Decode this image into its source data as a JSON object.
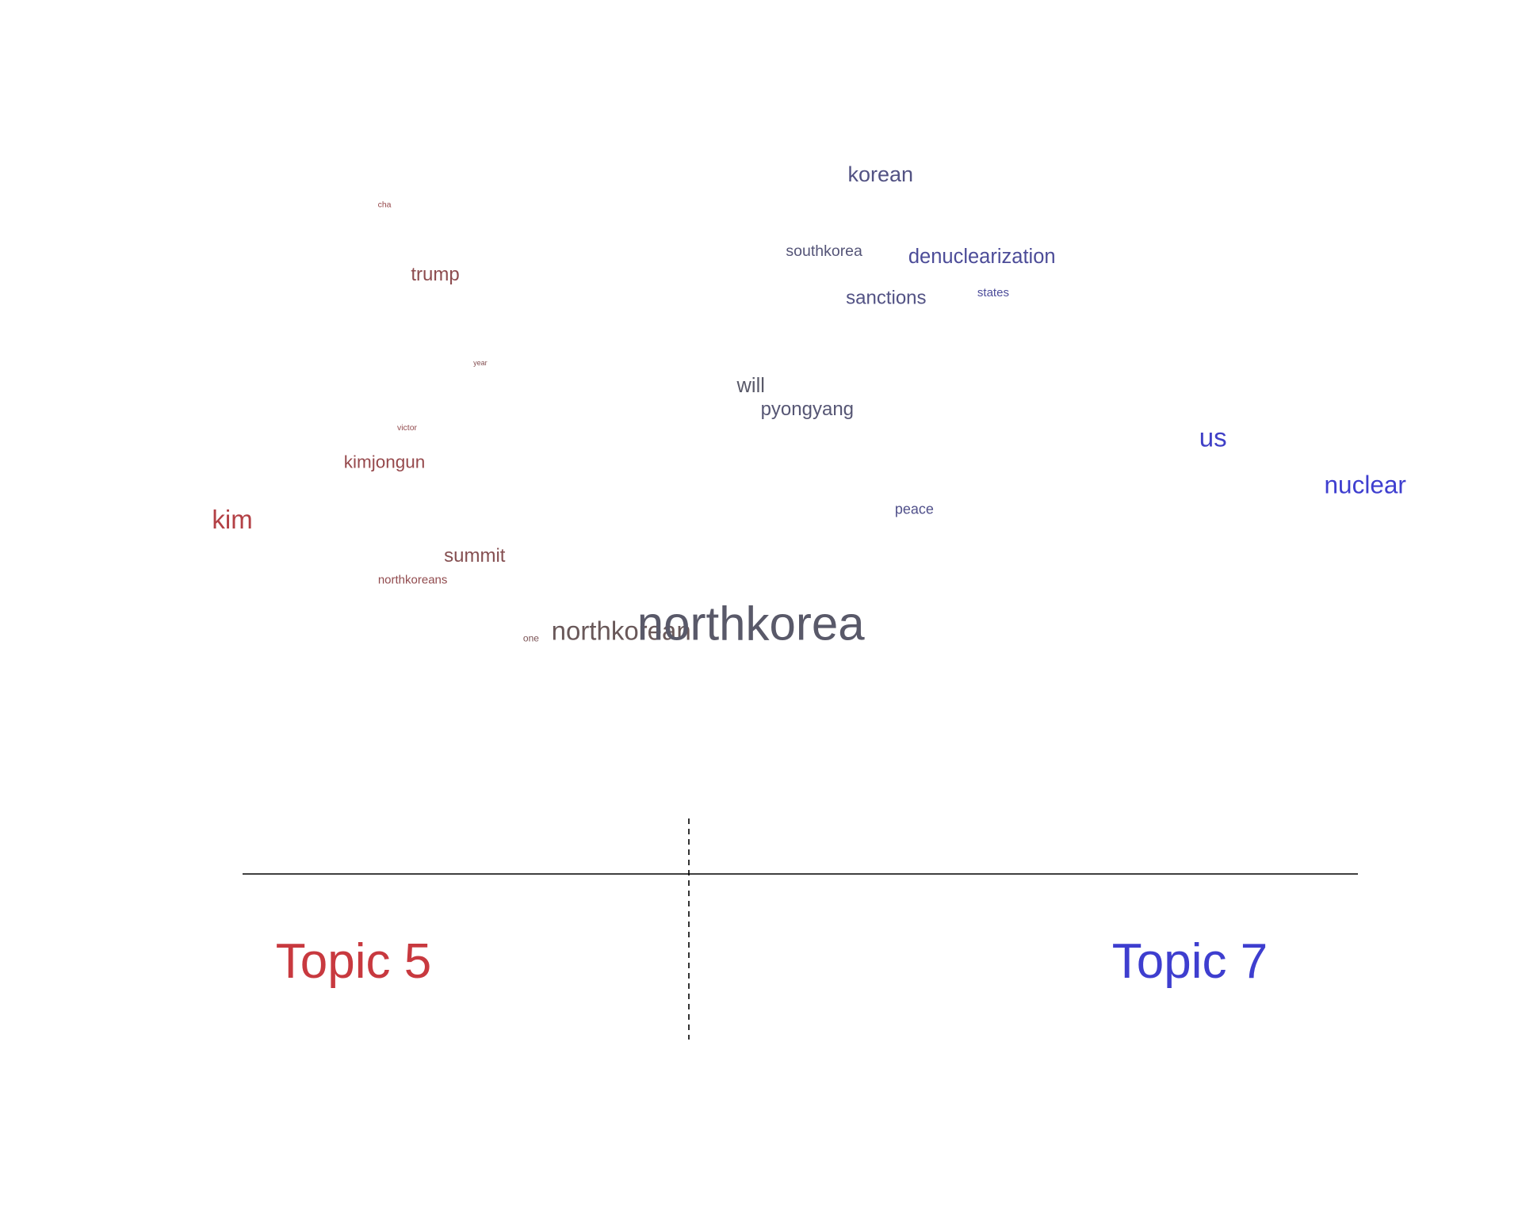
{
  "chart_data": {
    "type": "scatter",
    "description_free": true,
    "xlim": [
      -1,
      1
    ],
    "ylim": [
      0,
      1
    ],
    "left_label": "Topic 5",
    "right_label": "Topic 7",
    "left_color": "#c8393f",
    "right_color": "#3e3ecf",
    "neutral_color": "#5c5c5c",
    "words": [
      {
        "text": "korean",
        "x": 0.34,
        "y": 0.93,
        "freq": 18
      },
      {
        "text": "cha",
        "x": -0.54,
        "y": 0.88,
        "freq": 7
      },
      {
        "text": "southkorea",
        "x": 0.24,
        "y": 0.8,
        "freq": 13
      },
      {
        "text": "denuclearization",
        "x": 0.52,
        "y": 0.79,
        "freq": 17
      },
      {
        "text": "trump",
        "x": -0.45,
        "y": 0.76,
        "freq": 16
      },
      {
        "text": "sanctions",
        "x": 0.35,
        "y": 0.72,
        "freq": 16
      },
      {
        "text": "states",
        "x": 0.54,
        "y": 0.73,
        "freq": 10
      },
      {
        "text": "year",
        "x": -0.37,
        "y": 0.61,
        "freq": 6
      },
      {
        "text": "will",
        "x": 0.11,
        "y": 0.57,
        "freq": 17
      },
      {
        "text": "pyongyang",
        "x": 0.21,
        "y": 0.53,
        "freq": 16
      },
      {
        "text": "victor",
        "x": -0.5,
        "y": 0.5,
        "freq": 7
      },
      {
        "text": "us",
        "x": 0.93,
        "y": 0.48,
        "freq": 22
      },
      {
        "text": "kimjongun",
        "x": -0.54,
        "y": 0.44,
        "freq": 15
      },
      {
        "text": "nuclear",
        "x": 1.2,
        "y": 0.4,
        "freq": 21
      },
      {
        "text": "peace",
        "x": 0.4,
        "y": 0.36,
        "freq": 12
      },
      {
        "text": "kim",
        "x": -0.81,
        "y": 0.34,
        "freq": 22
      },
      {
        "text": "summit",
        "x": -0.38,
        "y": 0.28,
        "freq": 16
      },
      {
        "text": "northkoreans",
        "x": -0.49,
        "y": 0.24,
        "freq": 10
      },
      {
        "text": "one",
        "x": -0.28,
        "y": 0.14,
        "freq": 8
      },
      {
        "text": "northkorean",
        "x": -0.12,
        "y": 0.15,
        "freq": 22
      },
      {
        "text": "northkorea",
        "x": 0.11,
        "y": 0.16,
        "freq": 40
      }
    ]
  }
}
